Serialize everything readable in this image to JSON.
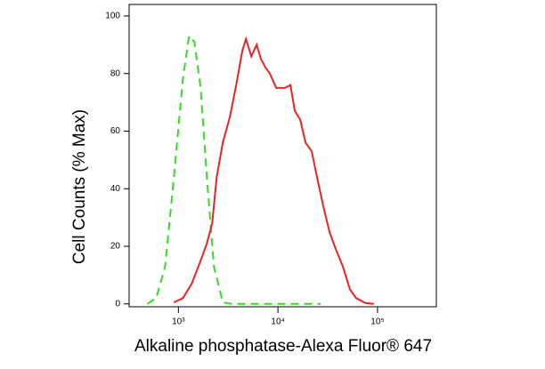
{
  "chart_data": {
    "type": "line",
    "x_label": "Alkaline phosphatase-Alexa Fluor® 647",
    "y_label": "Cell Counts (% Max)",
    "xscale": "log",
    "xlim": [
      320,
      390000
    ],
    "ylim": [
      -1,
      104
    ],
    "xticks": [
      {
        "value": 1000,
        "label": "10³"
      },
      {
        "value": 10000,
        "label": "10⁴"
      },
      {
        "value": 100000,
        "label": "10⁵"
      }
    ],
    "yticks": [
      0,
      20,
      40,
      60,
      80,
      100
    ],
    "series": [
      {
        "color": "#33dd22",
        "linestyle": "dashed",
        "x": [
          487,
          598,
          735,
          902,
          1108,
          1280,
          1448,
          1672,
          1931,
          2275,
          2794,
          3433,
          26800
        ],
        "values": [
          0,
          2,
          13,
          44,
          78,
          93,
          91,
          75,
          44,
          13,
          0.5,
          0,
          0
        ]
      },
      {
        "color": "#ee2222",
        "linestyle": "solid",
        "x": [
          900,
          1110,
          1361,
          1672,
          1931,
          2184,
          2421,
          2794,
          3295,
          3805,
          4394,
          4771,
          5400,
          6107,
          6765,
          7500,
          8310,
          9600,
          10640,
          11780,
          13330,
          14780,
          16720,
          18920,
          21840,
          24710,
          28530,
          32950,
          38030,
          44840,
          52850,
          61050,
          75000,
          92100
        ],
        "values": [
          0.5,
          2,
          7,
          15,
          21,
          28,
          44,
          56,
          65,
          76,
          88,
          92,
          86,
          90,
          85,
          82,
          80,
          75,
          75,
          75,
          76,
          67,
          64,
          56,
          53,
          44,
          34,
          25,
          19,
          13,
          5,
          2,
          0.3,
          0
        ]
      }
    ]
  }
}
